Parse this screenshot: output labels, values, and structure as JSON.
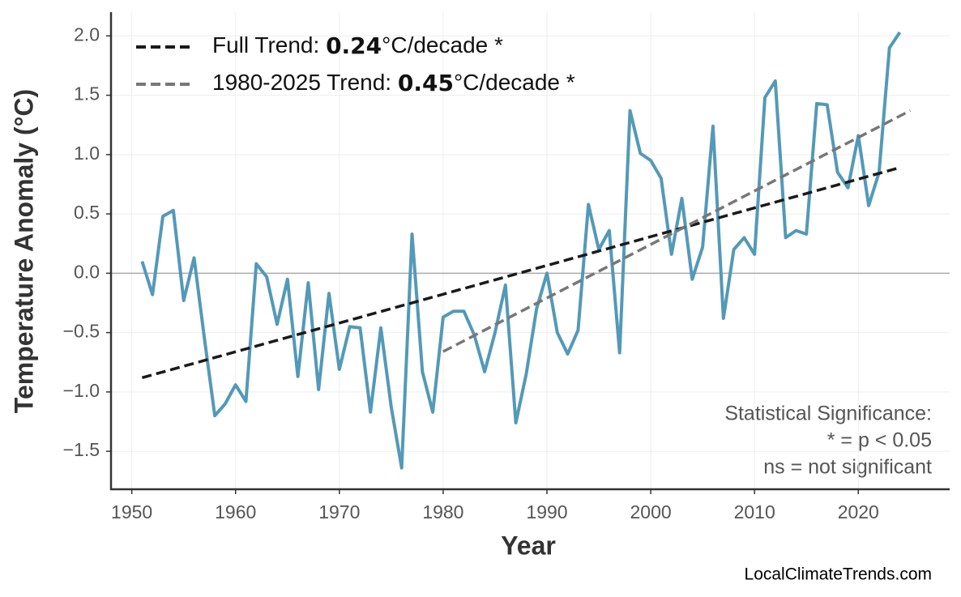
{
  "chart_data": {
    "type": "line",
    "xlabel": "Year",
    "ylabel": "Temperature Anomaly (°C)",
    "xlim": [
      1948.0,
      2028.8
    ],
    "ylim": [
      -1.82,
      2.2
    ],
    "xticks": [
      1950,
      1960,
      1970,
      1980,
      1990,
      2000,
      2010,
      2020
    ],
    "yticks": [
      {
        "value": -1.5,
        "label": "−1.5"
      },
      {
        "value": -1.0,
        "label": "−1.0"
      },
      {
        "value": -0.5,
        "label": "−0.5"
      },
      {
        "value": 0.0,
        "label": "0.0"
      },
      {
        "value": 0.5,
        "label": "0.5"
      },
      {
        "value": 1.0,
        "label": "1.0"
      },
      {
        "value": 1.5,
        "label": "1.5"
      },
      {
        "value": 2.0,
        "label": "2.0"
      }
    ],
    "grid": true,
    "hline": 0,
    "legend": "upper left",
    "series": [
      {
        "color": "#5399b8",
        "x": [
          1951,
          1952,
          1953,
          1954,
          1955,
          1956,
          1957,
          1958,
          1959,
          1960,
          1961,
          1962,
          1963,
          1964,
          1965,
          1966,
          1967,
          1968,
          1969,
          1970,
          1971,
          1972,
          1973,
          1974,
          1975,
          1976,
          1977,
          1978,
          1979,
          1980,
          1981,
          1982,
          1983,
          1984,
          1985,
          1986,
          1987,
          1988,
          1989,
          1990,
          1991,
          1992,
          1993,
          1994,
          1995,
          1996,
          1997,
          1998,
          1999,
          2000,
          2001,
          2002,
          2003,
          2004,
          2005,
          2006,
          2007,
          2008,
          2009,
          2010,
          2011,
          2012,
          2013,
          2014,
          2015,
          2016,
          2017,
          2018,
          2019,
          2020,
          2021,
          2022,
          2023,
          2024
        ],
        "values": [
          0.1,
          -0.18,
          0.48,
          0.53,
          -0.23,
          0.13,
          -0.55,
          -1.2,
          -1.1,
          -0.94,
          -1.08,
          0.08,
          -0.03,
          -0.43,
          -0.05,
          -0.87,
          -0.08,
          -0.98,
          -0.17,
          -0.81,
          -0.45,
          -0.46,
          -1.17,
          -0.46,
          -1.13,
          -1.64,
          0.33,
          -0.83,
          -1.17,
          -0.37,
          -0.32,
          -0.32,
          -0.52,
          -0.83,
          -0.5,
          -0.1,
          -1.26,
          -0.85,
          -0.3,
          0.0,
          -0.5,
          -0.68,
          -0.48,
          0.58,
          0.2,
          0.36,
          -0.67,
          1.37,
          1.01,
          0.95,
          0.8,
          0.16,
          0.63,
          -0.05,
          0.22,
          1.24,
          -0.38,
          0.2,
          0.3,
          0.16,
          1.48,
          1.62,
          0.3,
          0.36,
          0.33,
          1.43,
          1.42,
          0.85,
          0.72,
          1.16,
          0.57,
          0.85,
          1.9,
          2.03
        ]
      },
      {
        "name_prefix": "Full Trend: ",
        "slope": 0.24,
        "name_suffix": "°C/decade *",
        "color": "#1a1a1a",
        "dashed": true,
        "x": [
          1951,
          2024
        ],
        "values": [
          -0.88,
          0.89
        ]
      },
      {
        "name_prefix": "1980-2025 Trend: ",
        "slope": 0.45,
        "name_suffix": "°C/decade *",
        "color": "#777777",
        "dashed": true,
        "x": [
          1980,
          2025
        ],
        "values": [
          -0.66,
          1.37
        ]
      }
    ],
    "annotations": [
      "Statistical Significance:",
      "* = p < 0.05",
      "ns = not significant"
    ],
    "source": "LocalClimateTrends.com"
  }
}
